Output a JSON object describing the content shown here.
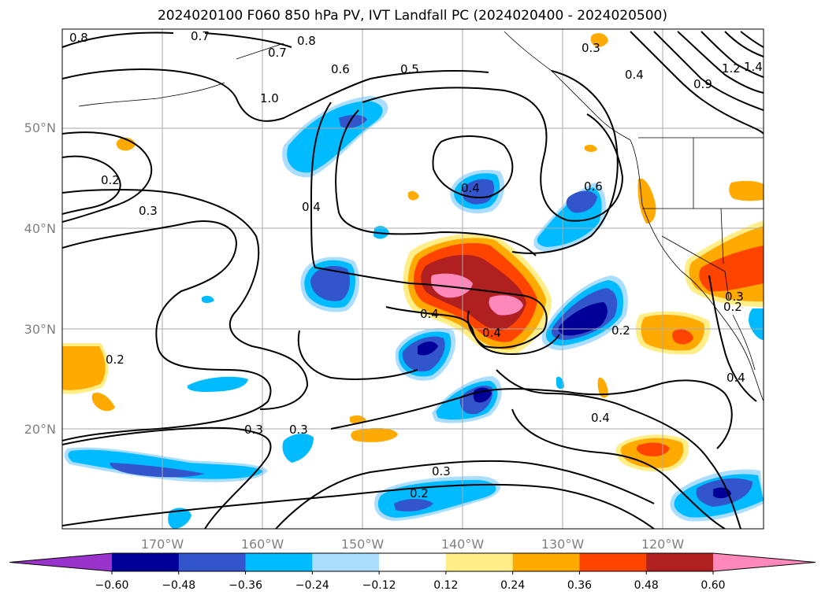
{
  "title": "2024020100 F060 850 hPa PV, IVT Landfall PC (2024020400 - 2024020500)",
  "axes": {
    "lon_labels": [
      "170°W",
      "160°W",
      "150°W",
      "140°W",
      "130°W",
      "120°W"
    ],
    "lat_labels": [
      "50°N",
      "40°N",
      "30°N",
      "20°N"
    ]
  },
  "colorbar": {
    "colors": [
      "#9933cc",
      "#000099",
      "#3355cc",
      "#00bbff",
      "#aaddff",
      "#ffffff",
      "#ffee88",
      "#ffaa00",
      "#ff4400",
      "#b02020",
      "#ff88bb"
    ],
    "tick_labels": [
      "−0.60",
      "−0.48",
      "−0.36",
      "−0.24",
      "−0.12",
      "0.12",
      "0.24",
      "0.36",
      "0.48",
      "0.60"
    ],
    "colors_meaning": "diverging PC anomaly shading"
  },
  "contour_labels": [
    "0.8",
    "0.7",
    "0.8",
    "0.7",
    "0.6",
    "0.5",
    "0.3",
    "0.4",
    "1.2",
    "1.4",
    "1.0",
    "0.9",
    "0.2",
    "0.3",
    "0.4",
    "0.4",
    "0.6",
    "0.4",
    "0.4",
    "0.2",
    "0.2",
    "0.3",
    "0.3",
    "0.2",
    "0.4",
    "0.3",
    "0.2",
    "0.4",
    "0.3"
  ]
}
